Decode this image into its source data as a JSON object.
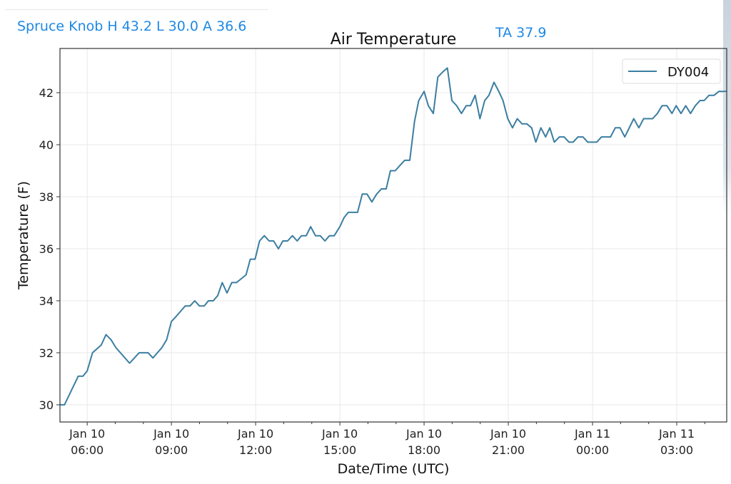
{
  "header": {
    "station_summary": "Spruce Knob H 43.2 L 30.0 A 36.6",
    "ta_readout": "TA 37.9"
  },
  "colors": {
    "line": "#3b7ea1",
    "accent_text": "#1e88e5",
    "grid": "#e8e8e8"
  },
  "chart_data": {
    "type": "line",
    "title": "Air Temperature",
    "xlabel": "Date/Time (UTC)",
    "ylabel": "Temperature (F)",
    "x_units": "hours since Jan 10 00:00 UTC",
    "xlim": [
      5.03,
      28.78
    ],
    "ylim": [
      29.34,
      43.7
    ],
    "grid": true,
    "legend_placement": "top-right",
    "yticks": [
      {
        "value": 30,
        "label": "30"
      },
      {
        "value": 32,
        "label": "32"
      },
      {
        "value": 34,
        "label": "34"
      },
      {
        "value": 36,
        "label": "36"
      },
      {
        "value": 38,
        "label": "38"
      },
      {
        "value": 40,
        "label": "40"
      },
      {
        "value": 42,
        "label": "42"
      }
    ],
    "xticks": [
      {
        "value": 6,
        "date": "Jan 10",
        "time": "06:00"
      },
      {
        "value": 9,
        "date": "Jan 10",
        "time": "09:00"
      },
      {
        "value": 12,
        "date": "Jan 10",
        "time": "12:00"
      },
      {
        "value": 15,
        "date": "Jan 10",
        "time": "15:00"
      },
      {
        "value": 18,
        "date": "Jan 10",
        "time": "18:00"
      },
      {
        "value": 21,
        "date": "Jan 10",
        "time": "21:00"
      },
      {
        "value": 24,
        "date": "Jan 11",
        "time": "00:00"
      },
      {
        "value": 27,
        "date": "Jan 11",
        "time": "03:00"
      }
    ],
    "series": [
      {
        "name": "DY004",
        "points": [
          [
            5.04,
            30.0
          ],
          [
            5.19,
            30.0
          ],
          [
            5.68,
            31.1
          ],
          [
            5.85,
            31.1
          ],
          [
            6.0,
            31.3
          ],
          [
            6.19,
            32.0
          ],
          [
            6.5,
            32.3
          ],
          [
            6.67,
            32.7
          ],
          [
            6.85,
            32.5
          ],
          [
            7.02,
            32.2
          ],
          [
            7.51,
            31.6
          ],
          [
            7.85,
            32.0
          ],
          [
            8.17,
            32.0
          ],
          [
            8.34,
            31.8
          ],
          [
            8.66,
            32.2
          ],
          [
            8.83,
            32.5
          ],
          [
            9.0,
            33.2
          ],
          [
            9.17,
            33.4
          ],
          [
            9.49,
            33.8
          ],
          [
            9.66,
            33.8
          ],
          [
            9.83,
            34.0
          ],
          [
            10.0,
            33.8
          ],
          [
            10.17,
            33.8
          ],
          [
            10.32,
            34.0
          ],
          [
            10.49,
            34.0
          ],
          [
            10.65,
            34.2
          ],
          [
            10.81,
            34.7
          ],
          [
            10.98,
            34.3
          ],
          [
            11.15,
            34.7
          ],
          [
            11.32,
            34.7
          ],
          [
            11.66,
            35.0
          ],
          [
            11.81,
            35.6
          ],
          [
            11.98,
            35.6
          ],
          [
            12.14,
            36.3
          ],
          [
            12.31,
            36.5
          ],
          [
            12.48,
            36.3
          ],
          [
            12.64,
            36.3
          ],
          [
            12.81,
            36.0
          ],
          [
            12.97,
            36.3
          ],
          [
            13.14,
            36.3
          ],
          [
            13.31,
            36.5
          ],
          [
            13.48,
            36.3
          ],
          [
            13.63,
            36.5
          ],
          [
            13.8,
            36.5
          ],
          [
            13.96,
            36.85
          ],
          [
            14.13,
            36.5
          ],
          [
            14.3,
            36.5
          ],
          [
            14.47,
            36.3
          ],
          [
            14.63,
            36.5
          ],
          [
            14.8,
            36.5
          ],
          [
            15.0,
            36.85
          ],
          [
            15.15,
            37.2
          ],
          [
            15.3,
            37.4
          ],
          [
            15.63,
            37.4
          ],
          [
            15.8,
            38.1
          ],
          [
            15.97,
            38.1
          ],
          [
            16.14,
            37.8
          ],
          [
            16.31,
            38.1
          ],
          [
            16.48,
            38.3
          ],
          [
            16.65,
            38.3
          ],
          [
            16.8,
            39.0
          ],
          [
            16.97,
            39.0
          ],
          [
            17.14,
            39.2
          ],
          [
            17.31,
            39.4
          ],
          [
            17.49,
            39.4
          ],
          [
            17.66,
            40.9
          ],
          [
            17.81,
            41.7
          ],
          [
            18.0,
            42.05
          ],
          [
            18.15,
            41.5
          ],
          [
            18.33,
            41.2
          ],
          [
            18.49,
            42.6
          ],
          [
            18.67,
            42.8
          ],
          [
            18.83,
            42.95
          ],
          [
            18.99,
            41.7
          ],
          [
            19.16,
            41.5
          ],
          [
            19.33,
            41.2
          ],
          [
            19.5,
            41.5
          ],
          [
            19.65,
            41.5
          ],
          [
            19.82,
            41.9
          ],
          [
            19.99,
            41.0
          ],
          [
            20.16,
            41.7
          ],
          [
            20.31,
            41.9
          ],
          [
            20.49,
            42.4
          ],
          [
            20.66,
            42.05
          ],
          [
            20.81,
            41.7
          ],
          [
            20.98,
            41.0
          ],
          [
            21.15,
            40.65
          ],
          [
            21.32,
            41.0
          ],
          [
            21.49,
            40.8
          ],
          [
            21.66,
            40.8
          ],
          [
            21.83,
            40.65
          ],
          [
            21.98,
            40.1
          ],
          [
            22.16,
            40.65
          ],
          [
            22.33,
            40.3
          ],
          [
            22.48,
            40.65
          ],
          [
            22.64,
            40.1
          ],
          [
            22.82,
            40.3
          ],
          [
            22.99,
            40.3
          ],
          [
            23.16,
            40.1
          ],
          [
            23.31,
            40.1
          ],
          [
            23.48,
            40.3
          ],
          [
            23.66,
            40.3
          ],
          [
            23.83,
            40.1
          ],
          [
            24.15,
            40.1
          ],
          [
            24.32,
            40.3
          ],
          [
            24.64,
            40.3
          ],
          [
            24.81,
            40.65
          ],
          [
            24.98,
            40.65
          ],
          [
            25.15,
            40.3
          ],
          [
            25.47,
            41.0
          ],
          [
            25.65,
            40.65
          ],
          [
            25.82,
            41.0
          ],
          [
            26.14,
            41.0
          ],
          [
            26.31,
            41.2
          ],
          [
            26.48,
            41.5
          ],
          [
            26.65,
            41.5
          ],
          [
            26.83,
            41.2
          ],
          [
            26.98,
            41.5
          ],
          [
            27.15,
            41.2
          ],
          [
            27.32,
            41.5
          ],
          [
            27.49,
            41.2
          ],
          [
            27.66,
            41.5
          ],
          [
            27.83,
            41.7
          ],
          [
            27.98,
            41.7
          ],
          [
            28.15,
            41.9
          ],
          [
            28.33,
            41.9
          ],
          [
            28.5,
            42.05
          ],
          [
            28.78,
            42.05
          ]
        ]
      }
    ]
  }
}
